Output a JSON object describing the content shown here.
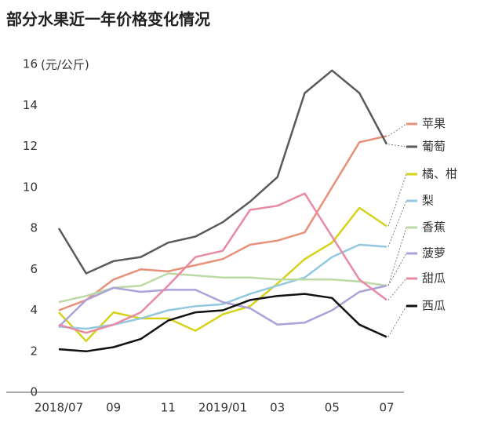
{
  "chart_data": {
    "type": "line",
    "title": "部分水果近一年价格变化情况",
    "y_label": "(元/公斤)",
    "categories": [
      "2018/07",
      null,
      "09",
      null,
      "11",
      null,
      "2019/01",
      null,
      "03",
      null,
      "05",
      null,
      "07"
    ],
    "ylim": [
      0,
      16
    ],
    "yticks": [
      0,
      2,
      4,
      6,
      8,
      10,
      12,
      14,
      16
    ],
    "grid": false,
    "legend": "right",
    "series": [
      {
        "name": "苹果",
        "color": "#e8917a",
        "values": [
          4.0,
          4.5,
          5.5,
          6.0,
          5.9,
          6.2,
          6.5,
          7.2,
          7.4,
          7.8,
          10.0,
          12.2,
          12.5
        ]
      },
      {
        "name": "葡萄",
        "color": "#5a5a5e",
        "values": [
          8.0,
          5.8,
          6.4,
          6.6,
          7.3,
          7.6,
          8.3,
          9.3,
          10.5,
          14.6,
          15.7,
          14.6,
          12.1
        ]
      },
      {
        "name": "橘、柑",
        "color": "#d6d21a",
        "values": [
          3.9,
          2.5,
          3.9,
          3.6,
          3.6,
          3.0,
          3.8,
          4.2,
          5.3,
          6.5,
          7.3,
          9.0,
          8.1
        ]
      },
      {
        "name": "梨",
        "color": "#92c8e0",
        "values": [
          3.2,
          3.1,
          3.3,
          3.6,
          4.0,
          4.2,
          4.3,
          4.8,
          5.2,
          5.6,
          6.6,
          7.2,
          7.1
        ]
      },
      {
        "name": "香蕉",
        "color": "#bcd9a6",
        "values": [
          4.4,
          4.7,
          5.1,
          5.2,
          5.8,
          5.7,
          5.6,
          5.6,
          5.5,
          5.5,
          5.5,
          5.4,
          5.2
        ]
      },
      {
        "name": "菠萝",
        "color": "#aaa2d8",
        "values": [
          3.2,
          4.5,
          5.1,
          4.9,
          5.0,
          5.0,
          4.4,
          4.1,
          3.3,
          3.4,
          4.0,
          4.9,
          5.2
        ]
      },
      {
        "name": "甜瓜",
        "color": "#e88aa2",
        "values": [
          3.3,
          2.9,
          3.3,
          3.9,
          5.2,
          6.6,
          6.9,
          8.9,
          9.1,
          9.7,
          7.6,
          5.5,
          4.5
        ]
      },
      {
        "name": "西瓜",
        "color": "#111111",
        "values": [
          2.1,
          2.0,
          2.2,
          2.6,
          3.5,
          3.9,
          4.0,
          4.5,
          4.7,
          4.8,
          4.6,
          3.3,
          2.7
        ]
      }
    ]
  }
}
